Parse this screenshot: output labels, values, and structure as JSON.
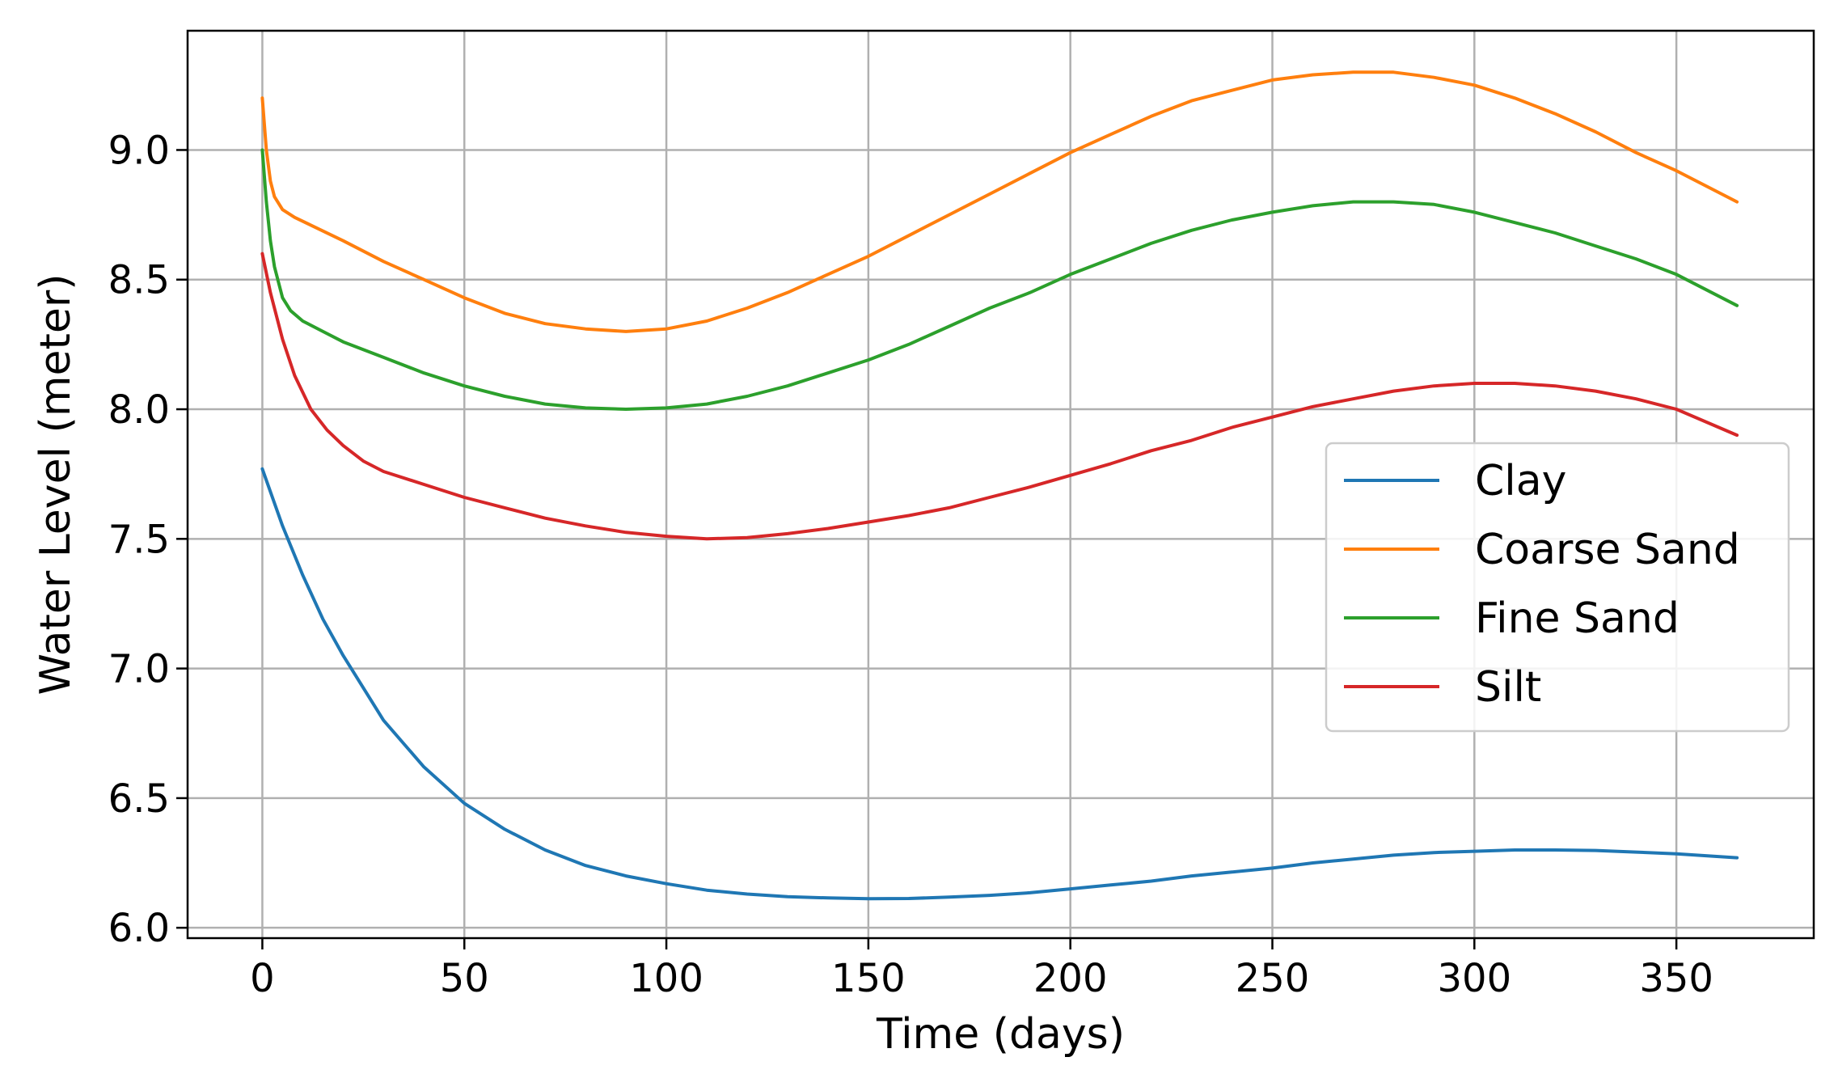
{
  "chart_data": {
    "type": "line",
    "title": "",
    "xlabel": "Time (days)",
    "ylabel": "Water Level (meter)",
    "xlim": [
      -18.5,
      384
    ],
    "ylim": [
      5.96,
      9.46
    ],
    "xticks": [
      0,
      50,
      100,
      150,
      200,
      250,
      300,
      350
    ],
    "yticks": [
      6.0,
      6.5,
      7.0,
      7.5,
      8.0,
      8.5,
      9.0
    ],
    "grid": true,
    "legend_position": "center-right",
    "series": [
      {
        "name": "Clay",
        "color": "#1f77b4",
        "x": [
          0,
          5,
          10,
          15,
          20,
          30,
          40,
          50,
          60,
          70,
          80,
          90,
          100,
          110,
          120,
          130,
          140,
          150,
          160,
          170,
          180,
          190,
          200,
          210,
          220,
          230,
          240,
          250,
          260,
          270,
          280,
          290,
          300,
          310,
          320,
          330,
          340,
          350,
          365
        ],
        "y": [
          7.77,
          7.55,
          7.36,
          7.19,
          7.05,
          6.8,
          6.62,
          6.48,
          6.38,
          6.3,
          6.24,
          6.2,
          6.17,
          6.145,
          6.13,
          6.12,
          6.115,
          6.112,
          6.113,
          6.118,
          6.125,
          6.135,
          6.15,
          6.165,
          6.18,
          6.2,
          6.215,
          6.23,
          6.25,
          6.265,
          6.28,
          6.29,
          6.295,
          6.3,
          6.3,
          6.298,
          6.292,
          6.285,
          6.27
        ]
      },
      {
        "name": "Coarse Sand",
        "color": "#ff7f0e",
        "x": [
          0,
          1,
          2,
          3,
          5,
          8,
          12,
          20,
          30,
          40,
          50,
          60,
          70,
          80,
          90,
          100,
          110,
          120,
          130,
          140,
          150,
          160,
          170,
          180,
          190,
          200,
          210,
          220,
          230,
          240,
          250,
          260,
          270,
          280,
          290,
          300,
          310,
          320,
          330,
          340,
          350,
          365
        ],
        "y": [
          9.2,
          9.0,
          8.88,
          8.82,
          8.77,
          8.74,
          8.71,
          8.65,
          8.57,
          8.5,
          8.43,
          8.37,
          8.33,
          8.31,
          8.3,
          8.31,
          8.34,
          8.39,
          8.45,
          8.52,
          8.59,
          8.67,
          8.75,
          8.83,
          8.91,
          8.99,
          9.06,
          9.13,
          9.19,
          9.23,
          9.27,
          9.29,
          9.3,
          9.3,
          9.28,
          9.25,
          9.2,
          9.14,
          9.07,
          8.99,
          8.92,
          8.8
        ]
      },
      {
        "name": "Fine Sand",
        "color": "#2ca02c",
        "x": [
          0,
          1,
          2,
          3,
          5,
          7,
          10,
          15,
          20,
          30,
          40,
          50,
          60,
          70,
          80,
          90,
          100,
          110,
          120,
          130,
          140,
          150,
          160,
          170,
          180,
          190,
          200,
          210,
          220,
          230,
          240,
          250,
          260,
          270,
          280,
          290,
          300,
          310,
          320,
          330,
          340,
          350,
          365
        ],
        "y": [
          9.0,
          8.8,
          8.65,
          8.55,
          8.43,
          8.38,
          8.34,
          8.3,
          8.26,
          8.2,
          8.14,
          8.09,
          8.05,
          8.02,
          8.005,
          8.0,
          8.005,
          8.02,
          8.05,
          8.09,
          8.14,
          8.19,
          8.25,
          8.32,
          8.39,
          8.45,
          8.52,
          8.58,
          8.64,
          8.69,
          8.73,
          8.76,
          8.785,
          8.8,
          8.8,
          8.79,
          8.76,
          8.72,
          8.68,
          8.63,
          8.58,
          8.52,
          8.4
        ]
      },
      {
        "name": "Silt",
        "color": "#d62728",
        "x": [
          0,
          2,
          5,
          8,
          12,
          16,
          20,
          25,
          30,
          40,
          50,
          60,
          70,
          80,
          90,
          100,
          110,
          120,
          130,
          140,
          150,
          160,
          170,
          180,
          190,
          200,
          210,
          220,
          230,
          240,
          250,
          260,
          270,
          280,
          290,
          300,
          310,
          320,
          330,
          340,
          350,
          365
        ],
        "y": [
          8.6,
          8.45,
          8.27,
          8.13,
          8.0,
          7.92,
          7.86,
          7.8,
          7.76,
          7.71,
          7.66,
          7.62,
          7.58,
          7.55,
          7.525,
          7.51,
          7.5,
          7.505,
          7.52,
          7.54,
          7.565,
          7.59,
          7.62,
          7.66,
          7.7,
          7.745,
          7.79,
          7.84,
          7.88,
          7.93,
          7.97,
          8.01,
          8.04,
          8.07,
          8.09,
          8.1,
          8.1,
          8.09,
          8.07,
          8.04,
          8.0,
          7.9
        ]
      }
    ]
  }
}
